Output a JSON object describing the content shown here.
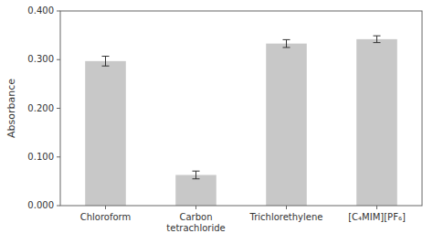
{
  "chart_data": {
    "type": "bar",
    "categories": [
      "Chloroform",
      "Carbon\ntetrachloride",
      "Trichlorethylene",
      "[C₄MIM][PF₆]"
    ],
    "values": [
      0.297,
      0.063,
      0.333,
      0.342
    ],
    "errors": [
      0.01,
      0.008,
      0.008,
      0.007
    ],
    "color": "#c8c8c8",
    "ylabel": "Absorbance",
    "ylim": [
      0.0,
      0.4
    ],
    "yticks": [
      {
        "value": 0.0,
        "label": "0.000"
      },
      {
        "value": 0.1,
        "label": "0.100"
      },
      {
        "value": 0.2,
        "label": "0.200"
      },
      {
        "value": 0.3,
        "label": "0.300"
      },
      {
        "value": 0.4,
        "label": "0.400"
      }
    ],
    "grid": false
  }
}
